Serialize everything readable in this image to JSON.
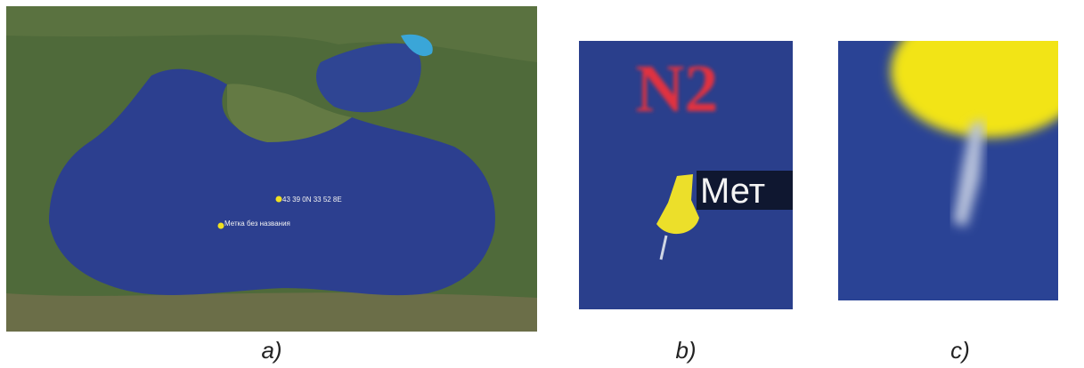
{
  "panels": [
    {
      "caption": "a)",
      "labels": [
        "43 39 0N  33 52 8E",
        "Метка без названия"
      ]
    },
    {
      "caption": "b)",
      "labels": [
        "N2",
        "Мет"
      ]
    },
    {
      "caption": "c)"
    }
  ]
}
